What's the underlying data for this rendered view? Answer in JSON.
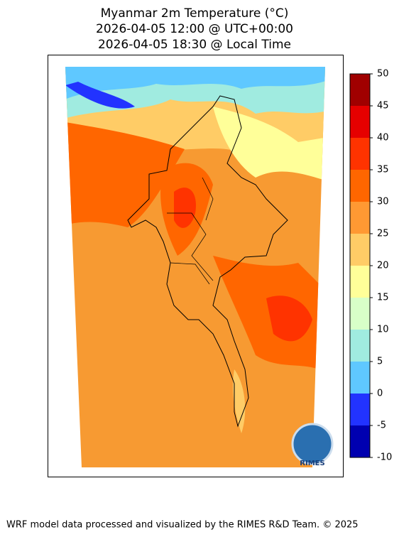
{
  "title": [
    "Myanmar 2m Temperature (°C)",
    "2026-04-05 12:00 @ UTC+00:00",
    "2026-04-05 18:30 @ Local Time"
  ],
  "colorbar": {
    "ticks": [
      -10,
      -5,
      0,
      5,
      10,
      15,
      20,
      25,
      30,
      35,
      40,
      45,
      50
    ],
    "colors": [
      "#0000b0",
      "#2233ff",
      "#5fc8ff",
      "#a0ebe0",
      "#d8ffc8",
      "#ffff99",
      "#ffcc66",
      "#ff9933",
      "#ff6600",
      "#ff3300",
      "#e60000",
      "#a00000"
    ]
  },
  "logo": "RIMES",
  "footer": "WRF model data processed and visualized by the RIMES R&D Team. © 2025"
}
